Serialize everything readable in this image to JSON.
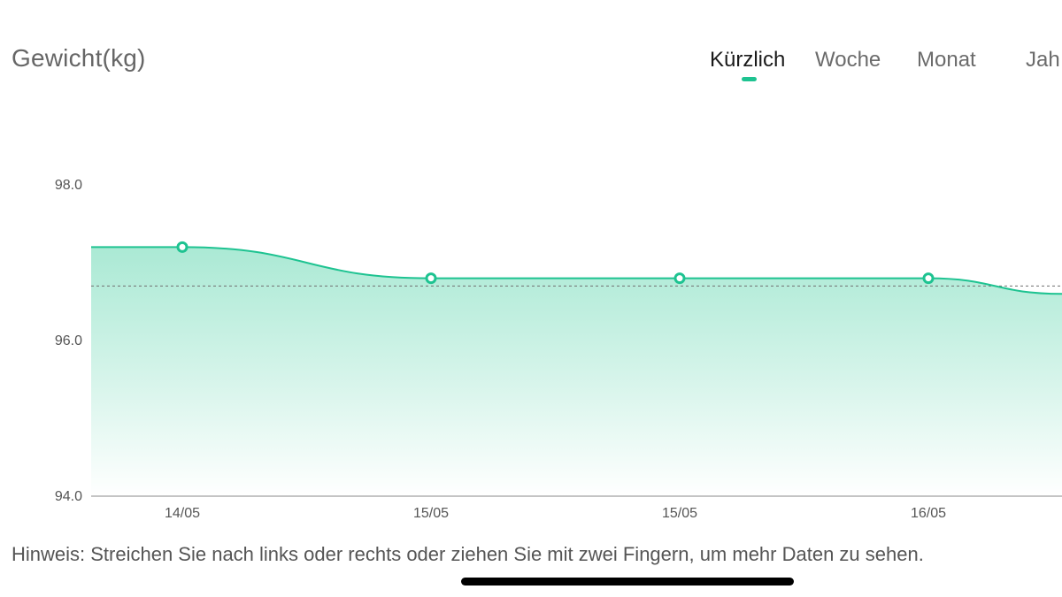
{
  "header": {
    "title": "Gewicht(kg)",
    "tabs": [
      {
        "label": "Kürzlich",
        "active": true
      },
      {
        "label": "Woche",
        "active": false
      },
      {
        "label": "Monat",
        "active": false
      },
      {
        "label": "Jah",
        "active": false
      }
    ]
  },
  "colors": {
    "accent": "#1ec391",
    "fill_top": "#a6e8d2",
    "axis": "#888888",
    "text": "#555555"
  },
  "chart_data": {
    "type": "area",
    "title": "",
    "xlabel": "",
    "ylabel": "",
    "ylim": [
      94.0,
      98.0
    ],
    "y_ticks": [
      "98.0",
      "96.0",
      "94.0"
    ],
    "x": [
      "14/05",
      "15/05",
      "15/05",
      "16/05"
    ],
    "series": [
      {
        "values": [
          97.2,
          96.8,
          96.8,
          96.8
        ]
      }
    ],
    "reference_line": 96.7,
    "reference_style": "dashed",
    "trailing_value": 96.6,
    "grid": false
  },
  "hint": "Hinweis: Streichen Sie nach links oder rechts oder ziehen Sie mit zwei Fingern, um mehr Daten zu sehen."
}
